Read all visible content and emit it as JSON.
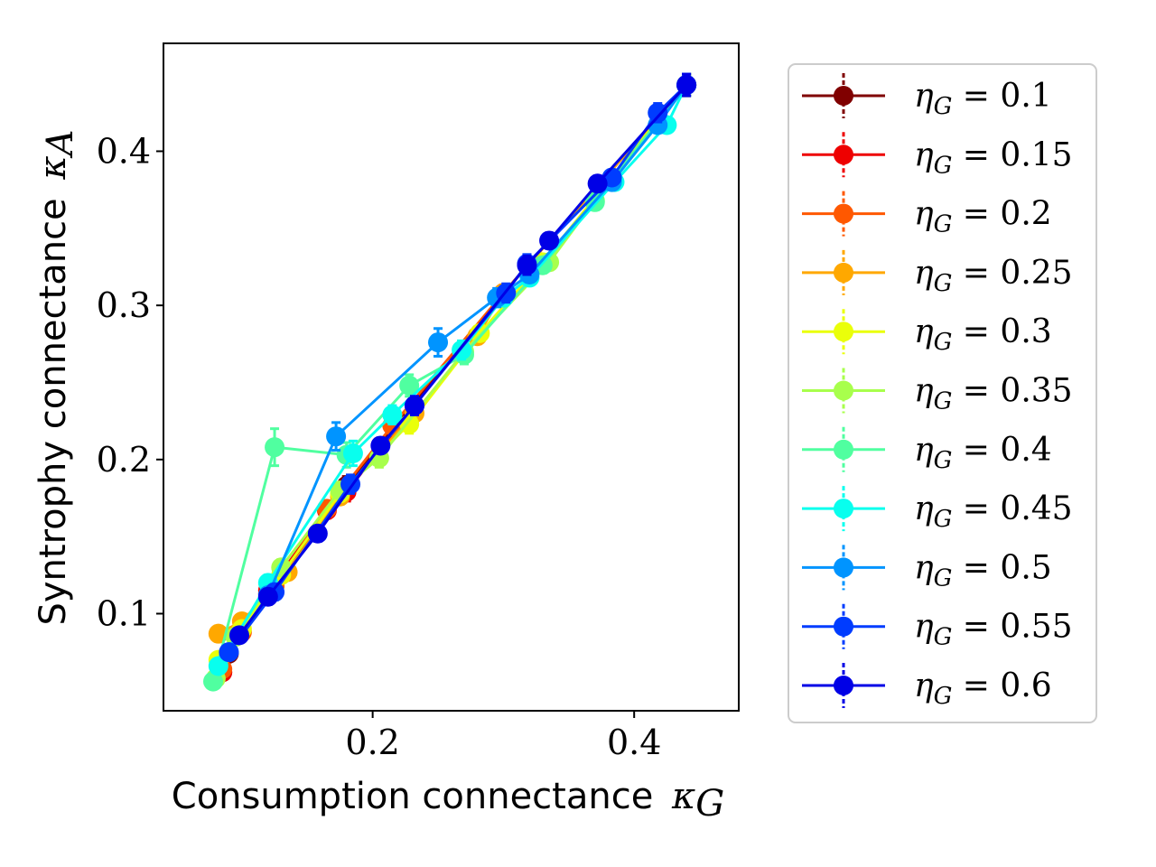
{
  "chart_data": {
    "type": "line",
    "xlabel": "Consumption connectance",
    "xlabel_symbol": "κ",
    "xlabel_sub": "G",
    "ylabel": "Syntrophy connectance",
    "ylabel_symbol": "κ",
    "ylabel_sub": "A",
    "xlim": [
      0.04,
      0.48
    ],
    "ylim": [
      0.037,
      0.47
    ],
    "xticks": [
      0.2,
      0.4
    ],
    "yticks": [
      0.1,
      0.2,
      0.3,
      0.4
    ],
    "xtick_labels": [
      "0.2",
      "0.4"
    ],
    "ytick_labels": [
      "0.1",
      "0.2",
      "0.3",
      "0.4"
    ],
    "grid": false,
    "legend_position": "outside-right",
    "series": [
      {
        "name": "η_G = 0.1",
        "sym": "η",
        "sub": "G",
        "val": " = 0.1",
        "color": "#800000",
        "points": [
          [
            0.085,
            0.062
          ],
          [
            0.09,
            0.074
          ],
          [
            0.12,
            0.113
          ],
          [
            0.18,
            0.183
          ],
          [
            0.3,
            0.308
          ],
          [
            0.44,
            0.443
          ]
        ],
        "err": [
          0.004,
          0.004,
          0.005,
          0.006,
          0.005,
          0.007
        ]
      },
      {
        "name": "η_G = 0.15",
        "sym": "η",
        "sub": "G",
        "val": " = 0.15",
        "color": "#ee0000",
        "points": [
          [
            0.085,
            0.062
          ],
          [
            0.095,
            0.086
          ],
          [
            0.12,
            0.115
          ],
          [
            0.165,
            0.167
          ],
          [
            0.18,
            0.179
          ],
          [
            0.3,
            0.308
          ],
          [
            0.44,
            0.443
          ]
        ],
        "err": [
          0.004,
          0.004,
          0.005,
          0.005,
          0.006,
          0.005,
          0.007
        ]
      },
      {
        "name": "η_G = 0.2",
        "sym": "η",
        "sub": "G",
        "val": " = 0.2",
        "color": "#ff5800",
        "points": [
          [
            0.085,
            0.064
          ],
          [
            0.1,
            0.088
          ],
          [
            0.125,
            0.118
          ],
          [
            0.165,
            0.168
          ],
          [
            0.215,
            0.222
          ],
          [
            0.3,
            0.308
          ],
          [
            0.44,
            0.443
          ]
        ],
        "err": [
          0.004,
          0.004,
          0.005,
          0.005,
          0.006,
          0.005,
          0.007
        ]
      },
      {
        "name": "η_G = 0.25",
        "sym": "η",
        "sub": "G",
        "val": " = 0.25",
        "color": "#ffa800",
        "points": [
          [
            0.082,
            0.087
          ],
          [
            0.1,
            0.095
          ],
          [
            0.135,
            0.127
          ],
          [
            0.175,
            0.176
          ],
          [
            0.232,
            0.23
          ],
          [
            0.28,
            0.28
          ],
          [
            0.3,
            0.308
          ],
          [
            0.44,
            0.443
          ]
        ],
        "err": [
          0.005,
          0.004,
          0.005,
          0.005,
          0.006,
          0.005,
          0.005,
          0.007
        ]
      },
      {
        "name": "η_G = 0.3",
        "sym": "η",
        "sub": "G",
        "val": " = 0.3",
        "color": "#eaff0a",
        "points": [
          [
            0.082,
            0.07
          ],
          [
            0.1,
            0.09
          ],
          [
            0.13,
            0.125
          ],
          [
            0.175,
            0.178
          ],
          [
            0.228,
            0.223
          ],
          [
            0.282,
            0.282
          ],
          [
            0.33,
            0.328
          ],
          [
            0.44,
            0.443
          ]
        ],
        "err": [
          0.004,
          0.004,
          0.005,
          0.005,
          0.006,
          0.005,
          0.005,
          0.007
        ]
      },
      {
        "name": "η_G = 0.35",
        "sym": "η",
        "sub": "G",
        "val": " = 0.35",
        "color": "#a8ff4c",
        "points": [
          [
            0.08,
            0.058
          ],
          [
            0.095,
            0.085
          ],
          [
            0.13,
            0.13
          ],
          [
            0.175,
            0.18
          ],
          [
            0.205,
            0.201
          ],
          [
            0.27,
            0.27
          ],
          [
            0.335,
            0.328
          ],
          [
            0.37,
            0.368
          ],
          [
            0.44,
            0.443
          ]
        ],
        "err": [
          0.004,
          0.004,
          0.005,
          0.005,
          0.006,
          0.006,
          0.005,
          0.005,
          0.007
        ]
      },
      {
        "name": "η_G = 0.4",
        "sym": "η",
        "sub": "G",
        "val": " = 0.4",
        "color": "#50ffa0",
        "points": [
          [
            0.078,
            0.056
          ],
          [
            0.125,
            0.208
          ],
          [
            0.18,
            0.203
          ],
          [
            0.228,
            0.248
          ],
          [
            0.27,
            0.268
          ],
          [
            0.33,
            0.326
          ],
          [
            0.37,
            0.367
          ],
          [
            0.44,
            0.443
          ]
        ],
        "err": [
          0.004,
          0.012,
          0.008,
          0.007,
          0.006,
          0.005,
          0.005,
          0.007
        ]
      },
      {
        "name": "η_G = 0.45",
        "sym": "η",
        "sub": "G",
        "val": " = 0.45",
        "color": "#08ffee",
        "points": [
          [
            0.082,
            0.066
          ],
          [
            0.12,
            0.12
          ],
          [
            0.185,
            0.204
          ],
          [
            0.215,
            0.229
          ],
          [
            0.268,
            0.271
          ],
          [
            0.3,
            0.305
          ],
          [
            0.32,
            0.318
          ],
          [
            0.385,
            0.38
          ],
          [
            0.425,
            0.417
          ],
          [
            0.44,
            0.443
          ]
        ],
        "err": [
          0.004,
          0.005,
          0.008,
          0.006,
          0.006,
          0.005,
          0.005,
          0.005,
          0.005,
          0.007
        ]
      },
      {
        "name": "η_G = 0.5",
        "sym": "η",
        "sub": "G",
        "val": " = 0.5",
        "color": "#0094ff",
        "points": [
          [
            0.09,
            0.075
          ],
          [
            0.12,
            0.112
          ],
          [
            0.172,
            0.215
          ],
          [
            0.25,
            0.276
          ],
          [
            0.295,
            0.305
          ],
          [
            0.32,
            0.32
          ],
          [
            0.383,
            0.38
          ],
          [
            0.418,
            0.417
          ],
          [
            0.44,
            0.443
          ]
        ],
        "err": [
          0.004,
          0.005,
          0.009,
          0.009,
          0.006,
          0.005,
          0.005,
          0.005,
          0.007
        ]
      },
      {
        "name": "η_G = 0.55",
        "sym": "η",
        "sub": "G",
        "val": " = 0.55",
        "color": "#003cff",
        "points": [
          [
            0.09,
            0.075
          ],
          [
            0.125,
            0.114
          ],
          [
            0.183,
            0.184
          ],
          [
            0.232,
            0.235
          ],
          [
            0.302,
            0.308
          ],
          [
            0.318,
            0.327
          ],
          [
            0.383,
            0.383
          ],
          [
            0.418,
            0.425
          ],
          [
            0.44,
            0.443
          ]
        ],
        "err": [
          0.004,
          0.005,
          0.006,
          0.006,
          0.006,
          0.006,
          0.005,
          0.006,
          0.007
        ]
      },
      {
        "name": "η_G = 0.6",
        "sym": "η",
        "sub": "G",
        "val": " = 0.6",
        "color": "#0000e6",
        "points": [
          [
            0.098,
            0.086
          ],
          [
            0.12,
            0.111
          ],
          [
            0.158,
            0.152
          ],
          [
            0.206,
            0.209
          ],
          [
            0.232,
            0.235
          ],
          [
            0.318,
            0.326
          ],
          [
            0.335,
            0.342
          ],
          [
            0.372,
            0.379
          ],
          [
            0.44,
            0.443
          ]
        ],
        "err": [
          0.004,
          0.005,
          0.005,
          0.005,
          0.006,
          0.006,
          0.005,
          0.005,
          0.007
        ]
      }
    ]
  }
}
